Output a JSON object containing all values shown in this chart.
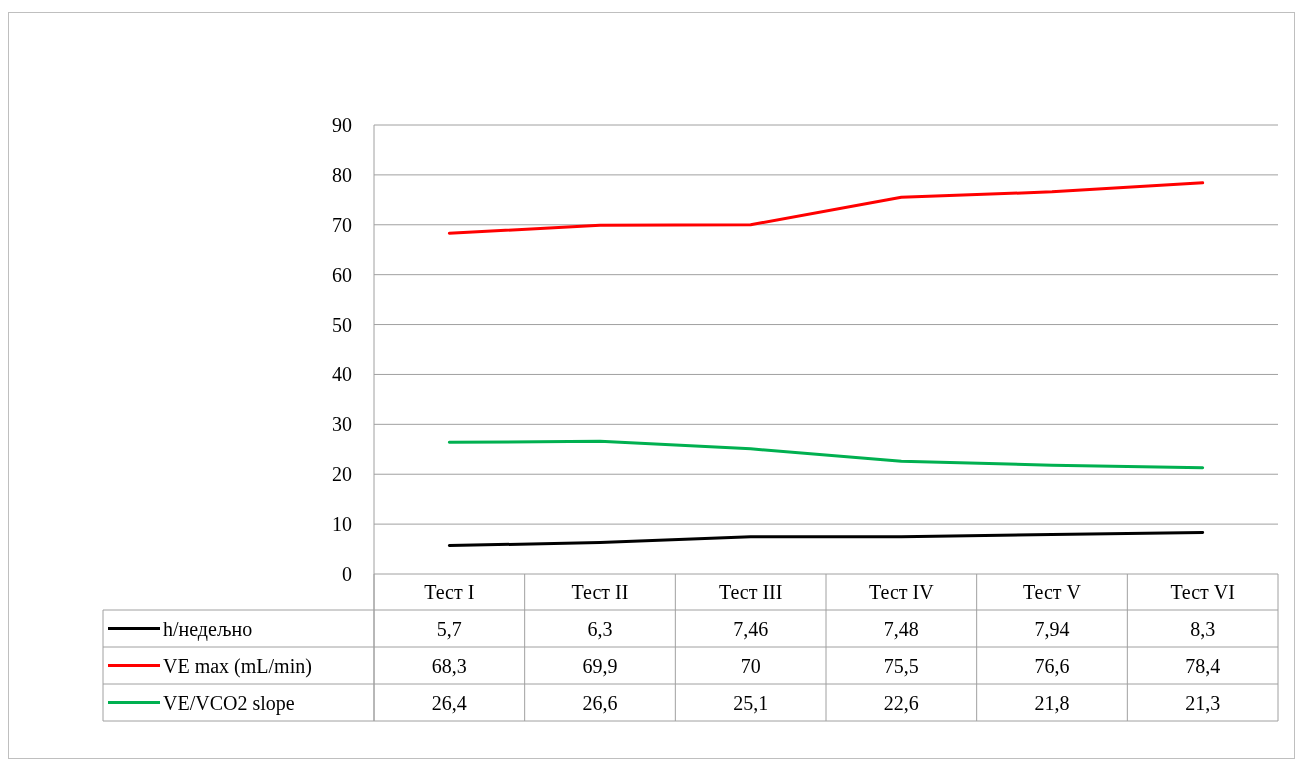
{
  "chart_data": {
    "type": "line",
    "categories": [
      "Тест I",
      "Тест II",
      "Тест III",
      "Тест IV",
      "Тест V",
      "Тест VI"
    ],
    "series": [
      {
        "name": "h/недељно",
        "color": "#000000",
        "values": [
          5.7,
          6.3,
          7.46,
          7.48,
          7.94,
          8.3
        ],
        "value_labels": [
          "5,7",
          "6,3",
          "7,46",
          "7,48",
          "7,94",
          "8,3"
        ]
      },
      {
        "name": "VE max (mL/min)",
        "color": "#ff0000",
        "values": [
          68.3,
          69.9,
          70,
          75.5,
          76.6,
          78.4
        ],
        "value_labels": [
          "68,3",
          "69,9",
          "70",
          "75,5",
          "76,6",
          "78,4"
        ]
      },
      {
        "name": "VE/VCO2 slope",
        "color": "#00b050",
        "values": [
          26.4,
          26.6,
          25.1,
          22.6,
          21.8,
          21.3
        ],
        "value_labels": [
          "26,4",
          "26,6",
          "25,1",
          "22,6",
          "21,8",
          "21,3"
        ]
      }
    ],
    "ylim": [
      0,
      90
    ],
    "yticks": [
      0,
      10,
      20,
      30,
      40,
      50,
      60,
      70,
      80,
      90
    ],
    "grid": "y",
    "legend": "bottom",
    "marker": "none",
    "line_style": "solid"
  }
}
